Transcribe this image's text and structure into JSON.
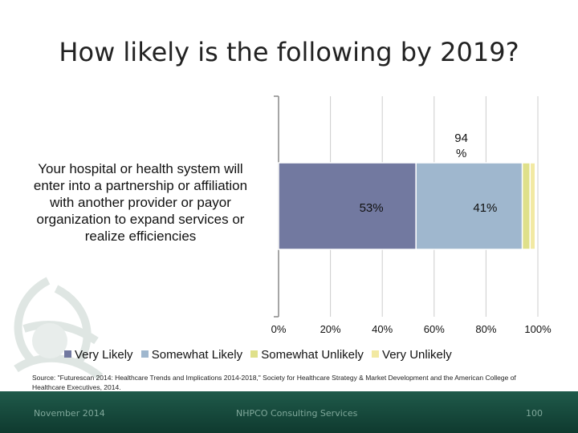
{
  "slide": {
    "title": "How likely is the following by 2019?",
    "source": "Source: \"Futurescan 2014: Healthcare Trends and Implications 2014-2018,\" Society for Healthcare Strategy & Market Development and the American College of Healthcare Executives, 2014.",
    "footer": {
      "date": "November 2014",
      "org": "NHPCO Consulting Services",
      "page": "100"
    }
  },
  "chart_data": {
    "type": "bar",
    "orientation": "horizontal",
    "stacked": true,
    "categories": [
      "Your hospital or health system will enter into a partnership or affiliation with another provider or payor organization to expand services or realize efficiencies"
    ],
    "series": [
      {
        "name": "Very Likely",
        "values": [
          53
        ],
        "label": "53%",
        "color": "#7279a0"
      },
      {
        "name": "Somewhat Likely",
        "values": [
          41
        ],
        "label": "41%",
        "color": "#9fb7ce"
      },
      {
        "name": "Somewhat Unlikely",
        "values": [
          3
        ],
        "label": "",
        "color": "#dfe08a"
      },
      {
        "name": "Very Unlikely",
        "values": [
          2
        ],
        "label": "",
        "color": "#f2e9a2"
      }
    ],
    "annotation": {
      "line1": "94",
      "line2": "%"
    },
    "xticks": [
      "0%",
      "20%",
      "40%",
      "60%",
      "80%",
      "100%"
    ],
    "xlim": [
      0,
      100
    ],
    "grid": true,
    "legend": "bottom"
  }
}
